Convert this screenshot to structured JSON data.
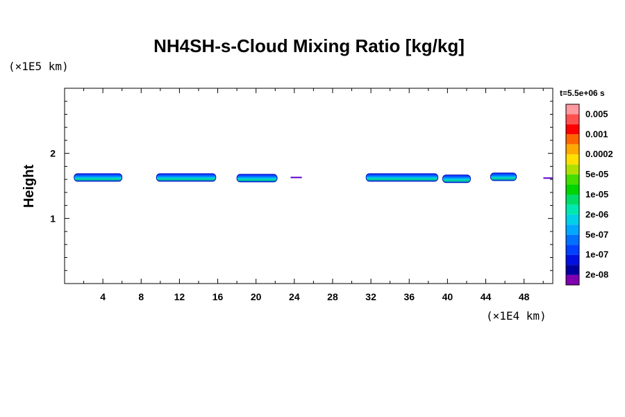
{
  "chart_data": {
    "type": "heatmap",
    "title": "NH4SH-s-Cloud Mixing Ratio [kg/kg]",
    "xlabel": "",
    "ylabel": "Height",
    "x_unit": "(×1E4 km)",
    "y_unit": "(×1E5 km)",
    "time_label": "t=5.5e+06 s",
    "xlim": [
      0,
      51
    ],
    "ylim": [
      0,
      3
    ],
    "x_ticks": [
      4,
      8,
      12,
      16,
      20,
      24,
      28,
      32,
      36,
      40,
      44,
      48
    ],
    "y_ticks": [
      1,
      2
    ],
    "colorbar": {
      "labels": [
        "0.005",
        "0.001",
        "0.0002",
        "5e-05",
        "1e-05",
        "2e-06",
        "5e-07",
        "1e-07",
        "2e-08"
      ],
      "colors_top_to_bottom": [
        "#ff9aa0",
        "#ff5050",
        "#ff0000",
        "#ff6600",
        "#ffaa00",
        "#ffe000",
        "#b0e000",
        "#44dd00",
        "#00d400",
        "#00dd66",
        "#00e8b0",
        "#00d0e8",
        "#00a8ff",
        "#0070ff",
        "#0040ff",
        "#0010e0",
        "#0000a0",
        "#8000b0"
      ]
    },
    "cloud_patches": [
      {
        "x_start": 1.0,
        "x_end": 6.0,
        "height": 1.63
      },
      {
        "x_start": 9.6,
        "x_end": 15.8,
        "height": 1.63
      },
      {
        "x_start": 18.0,
        "x_end": 22.2,
        "height": 1.62
      },
      {
        "x_start": 23.6,
        "x_end": 24.8,
        "height": 1.63
      },
      {
        "x_start": 31.5,
        "x_end": 39.0,
        "height": 1.63
      },
      {
        "x_start": 39.5,
        "x_end": 42.4,
        "height": 1.61
      },
      {
        "x_start": 44.5,
        "x_end": 47.2,
        "height": 1.64
      },
      {
        "x_start": 50.0,
        "x_end": 51.0,
        "height": 1.62
      }
    ]
  }
}
